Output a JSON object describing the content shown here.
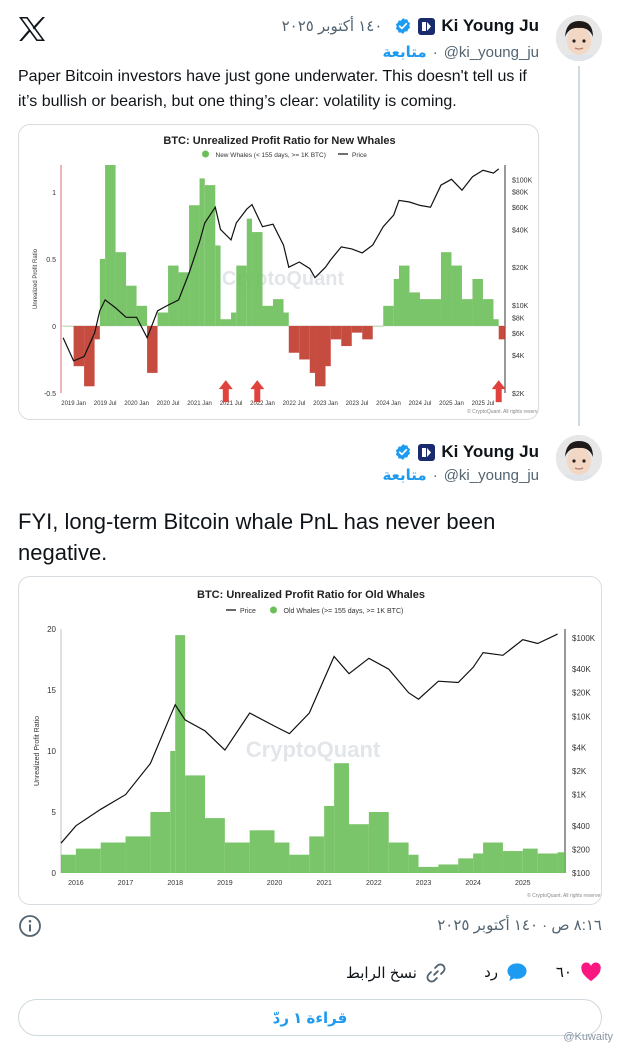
{
  "tweet1": {
    "display_name": "Ki Young Ju",
    "handle": "@ki_young_ju",
    "follow_label": "متابعة",
    "date": "١٤٠ أكتوبر ٢٠٢٥",
    "text": "Paper Bitcoin investors have just gone underwater. This doesn't tell us if it’s bullish or bearish, but one thing’s clear: volatility is coming."
  },
  "tweet2": {
    "display_name": "Ki Young Ju",
    "handle": "@ki_young_ju",
    "follow_label": "متابعة",
    "text": "FYI, long-term Bitcoin whale PnL has never been negative."
  },
  "meta": {
    "timestamp": "٨:١٦ ص · ١٤٠ أكتوبر ٢٠٢٥"
  },
  "actions": {
    "like_count": "٦٠",
    "reply_label": "رد",
    "copy_link_label": "نسخ الرابط",
    "read_replies_label": "قراءة ١ ردّ"
  },
  "footer": {
    "watermark": "@Kuwaity"
  },
  "icons": {
    "logo": "x-logo-icon",
    "verified": "verified-badge-icon",
    "corp": "cryptoquant-badge-icon",
    "info": "info-icon",
    "like": "heart-icon",
    "reply": "reply-bubble-icon",
    "copy": "link-icon"
  },
  "colors": {
    "accent": "#1d9bf0",
    "like": "#f91880",
    "text": "#0f1419",
    "muted": "#536471",
    "positive": "#6bbf59",
    "negative": "#c0392b"
  },
  "chart_data": [
    {
      "type": "area",
      "title": "BTC: Unrealized Profit Ratio for New Whales",
      "legend": [
        "New Whales (< 155 days, >= 1K BTC)",
        "Price"
      ],
      "legend_position": "top-center",
      "ylabel": "Unrealized Profit Ratio",
      "y_ticks": [
        "1",
        "0.5",
        "0",
        "-0.5"
      ],
      "ylim": [
        -0.5,
        1.2
      ],
      "y2_ticks": [
        "$100K",
        "$80K",
        "$60K",
        "$40K",
        "$20K",
        "$10K",
        "$8K",
        "$6K",
        "$4K",
        "$2K"
      ],
      "y2_scale": "log",
      "x_ticks": [
        "2019 Jan",
        "2019 Jul",
        "2020 Jan",
        "2020 Jul",
        "2021 Jan",
        "2021 Jul",
        "2022 Jan",
        "2022 Jul",
        "2023 Jan",
        "2023 Jul",
        "2024 Jan",
        "2024 Jul",
        "2025 Jan",
        "2025 Jul"
      ],
      "watermark": "CryptoQuant",
      "credit": "© CryptoQuant. All rights reserved",
      "series": [
        {
          "name": "New Whales (< 155 days, >= 1K BTC)",
          "x": [
            "2018-11",
            "2019-01",
            "2019-03",
            "2019-05",
            "2019-06",
            "2019-07",
            "2019-09",
            "2019-11",
            "2020-01",
            "2020-03",
            "2020-05",
            "2020-07",
            "2020-09",
            "2020-11",
            "2021-01",
            "2021-02",
            "2021-04",
            "2021-05",
            "2021-07",
            "2021-08",
            "2021-10",
            "2021-11",
            "2022-01",
            "2022-03",
            "2022-05",
            "2022-06",
            "2022-08",
            "2022-10",
            "2022-11",
            "2023-01",
            "2023-02",
            "2023-04",
            "2023-06",
            "2023-08",
            "2023-10",
            "2023-12",
            "2024-02",
            "2024-03",
            "2024-05",
            "2024-07",
            "2024-09",
            "2024-11",
            "2025-01",
            "2025-03",
            "2025-05",
            "2025-07",
            "2025-09",
            "2025-10"
          ],
          "values": [
            0,
            -0.3,
            -0.45,
            -0.1,
            0.5,
            1.2,
            0.55,
            0.3,
            0.15,
            -0.35,
            0.1,
            0.45,
            0.4,
            0.9,
            1.1,
            1.05,
            0.6,
            0.05,
            0.1,
            0.45,
            0.8,
            0.7,
            0.15,
            0.2,
            0.1,
            -0.2,
            -0.25,
            -0.35,
            -0.45,
            -0.3,
            -0.1,
            -0.15,
            -0.05,
            -0.1,
            0,
            0.15,
            0.35,
            0.45,
            0.25,
            0.2,
            0.2,
            0.55,
            0.45,
            0.2,
            0.35,
            0.2,
            0.05,
            -0.1
          ],
          "color": "#6bbf59",
          "negative_color": "#c0392b"
        },
        {
          "name": "Price",
          "x": [
            "2018-11",
            "2019-01",
            "2019-03",
            "2019-05",
            "2019-06",
            "2019-07",
            "2019-09",
            "2019-11",
            "2020-01",
            "2020-03",
            "2020-05",
            "2020-07",
            "2020-09",
            "2020-11",
            "2021-01",
            "2021-02",
            "2021-04",
            "2021-05",
            "2021-07",
            "2021-08",
            "2021-10",
            "2021-11",
            "2022-01",
            "2022-03",
            "2022-05",
            "2022-06",
            "2022-08",
            "2022-10",
            "2022-11",
            "2023-01",
            "2023-02",
            "2023-04",
            "2023-06",
            "2023-08",
            "2023-10",
            "2023-12",
            "2024-02",
            "2024-03",
            "2024-05",
            "2024-07",
            "2024-09",
            "2024-11",
            "2025-01",
            "2025-03",
            "2025-05",
            "2025-07",
            "2025-09",
            "2025-10"
          ],
          "values": [
            5500,
            3600,
            3900,
            6000,
            9000,
            11000,
            9500,
            8000,
            8000,
            5500,
            9000,
            10000,
            11000,
            18000,
            32000,
            45000,
            60000,
            40000,
            33000,
            45000,
            58000,
            63000,
            42000,
            44000,
            30000,
            20000,
            22000,
            19500,
            16500,
            20000,
            23000,
            29000,
            28000,
            26000,
            30000,
            42000,
            52000,
            68000,
            66000,
            62000,
            60000,
            90000,
            100000,
            82000,
            105000,
            118000,
            112000,
            121000
          ],
          "color": "#111111"
        }
      ],
      "annotations": [
        "arrow-up 2021-06",
        "arrow-up 2021-12",
        "arrow-up 2025-10"
      ]
    },
    {
      "type": "area",
      "title": "BTC: Unrealized Profit Ratio for Old Whales",
      "legend": [
        "Price",
        "Old Whales (>= 155 days, >= 1K BTC)"
      ],
      "legend_position": "top-center",
      "ylabel": "Unrealized Profit Ratio",
      "y_ticks": [
        "20",
        "15",
        "10",
        "5",
        "0"
      ],
      "ylim": [
        0,
        20
      ],
      "y2_ticks": [
        "$100K",
        "$40K",
        "$20K",
        "$10K",
        "$4K",
        "$2K",
        "$1K",
        "$400",
        "$200",
        "$100"
      ],
      "y2_scale": "log",
      "x_ticks": [
        "2016",
        "2017",
        "2018",
        "2019",
        "2020",
        "2021",
        "2022",
        "2023",
        "2024",
        "2025"
      ],
      "watermark": "CryptoQuant",
      "credit": "© CryptoQuant. All rights reserved",
      "series": [
        {
          "name": "Old Whales (>= 155 days, >= 1K BTC)",
          "x": [
            2015.7,
            2016.0,
            2016.5,
            2017.0,
            2017.5,
            2017.9,
            2018.0,
            2018.2,
            2018.6,
            2019.0,
            2019.5,
            2020.0,
            2020.3,
            2020.7,
            2021.0,
            2021.2,
            2021.5,
            2021.9,
            2022.3,
            2022.7,
            2022.9,
            2023.3,
            2023.7,
            2024.0,
            2024.2,
            2024.6,
            2025.0,
            2025.3,
            2025.7
          ],
          "values": [
            1.5,
            2.0,
            2.5,
            3.0,
            5.0,
            10.0,
            19.5,
            8.0,
            4.5,
            2.5,
            3.5,
            2.5,
            1.5,
            3.0,
            5.5,
            9.0,
            4.0,
            5.0,
            2.5,
            1.5,
            0.5,
            0.7,
            1.2,
            1.6,
            2.5,
            1.8,
            2.0,
            1.6,
            1.7
          ],
          "color": "#6bbf59"
        },
        {
          "name": "Price",
          "x": [
            2015.7,
            2016.0,
            2016.5,
            2017.0,
            2017.5,
            2017.9,
            2018.0,
            2018.2,
            2018.6,
            2019.0,
            2019.5,
            2020.0,
            2020.3,
            2020.7,
            2021.0,
            2021.2,
            2021.5,
            2021.9,
            2022.3,
            2022.7,
            2022.9,
            2023.3,
            2023.7,
            2024.0,
            2024.2,
            2024.6,
            2025.0,
            2025.3,
            2025.7
          ],
          "values": [
            240,
            400,
            650,
            1000,
            2500,
            10000,
            14000,
            9000,
            6500,
            3700,
            11000,
            7500,
            6000,
            11000,
            30000,
            58000,
            35000,
            55000,
            40000,
            20000,
            16500,
            28000,
            27000,
            42000,
            65000,
            60000,
            95000,
            85000,
            112000
          ],
          "color": "#111111"
        }
      ]
    }
  ]
}
